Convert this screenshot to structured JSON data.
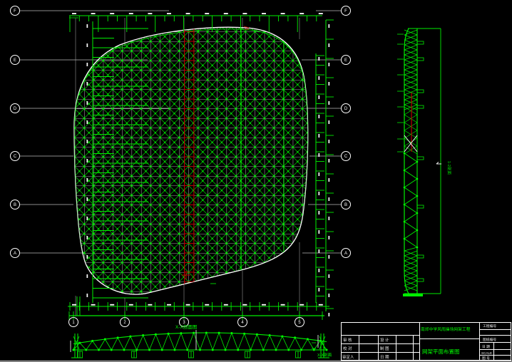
{
  "drawing": {
    "plan_section_title": "X-X剖面图",
    "plan_section_title_right": "X-X剖面",
    "side_section_label": "1-2剖面"
  },
  "axes": {
    "left_bubbles": [
      "F",
      "E",
      "D",
      "C",
      "B",
      "A"
    ],
    "right_bubbles": [
      "F",
      "E",
      "D",
      "C",
      "B",
      "A"
    ],
    "bottom_bubbles": [
      "1",
      "2",
      "3",
      "4",
      "5"
    ]
  },
  "title_block": {
    "project_name": "南郊中学风雨操场网架工程",
    "drawing_title": "网架平面布置图",
    "fields": {
      "shenhe": "审 核",
      "sheji": "设 计",
      "jiaodui": "校 对",
      "zhitu": "制 图",
      "shending": "审定人",
      "riqi_left": "日 期",
      "gongcheng_bianhao": "工程编号",
      "tuzhi_bianhao": "图纸编号",
      "riqi": "日 期",
      "scale": "SCALE",
      "tuhao": "图 号"
    }
  },
  "colors": {
    "line_green": "#00ee00",
    "bright_green": "#00ff00",
    "cut_red": "#bb0000",
    "grid_white": "#dcdcdc",
    "axis_grey": "#7d7d7d",
    "leader_grey": "#b8b8b8",
    "background": "#000000"
  }
}
